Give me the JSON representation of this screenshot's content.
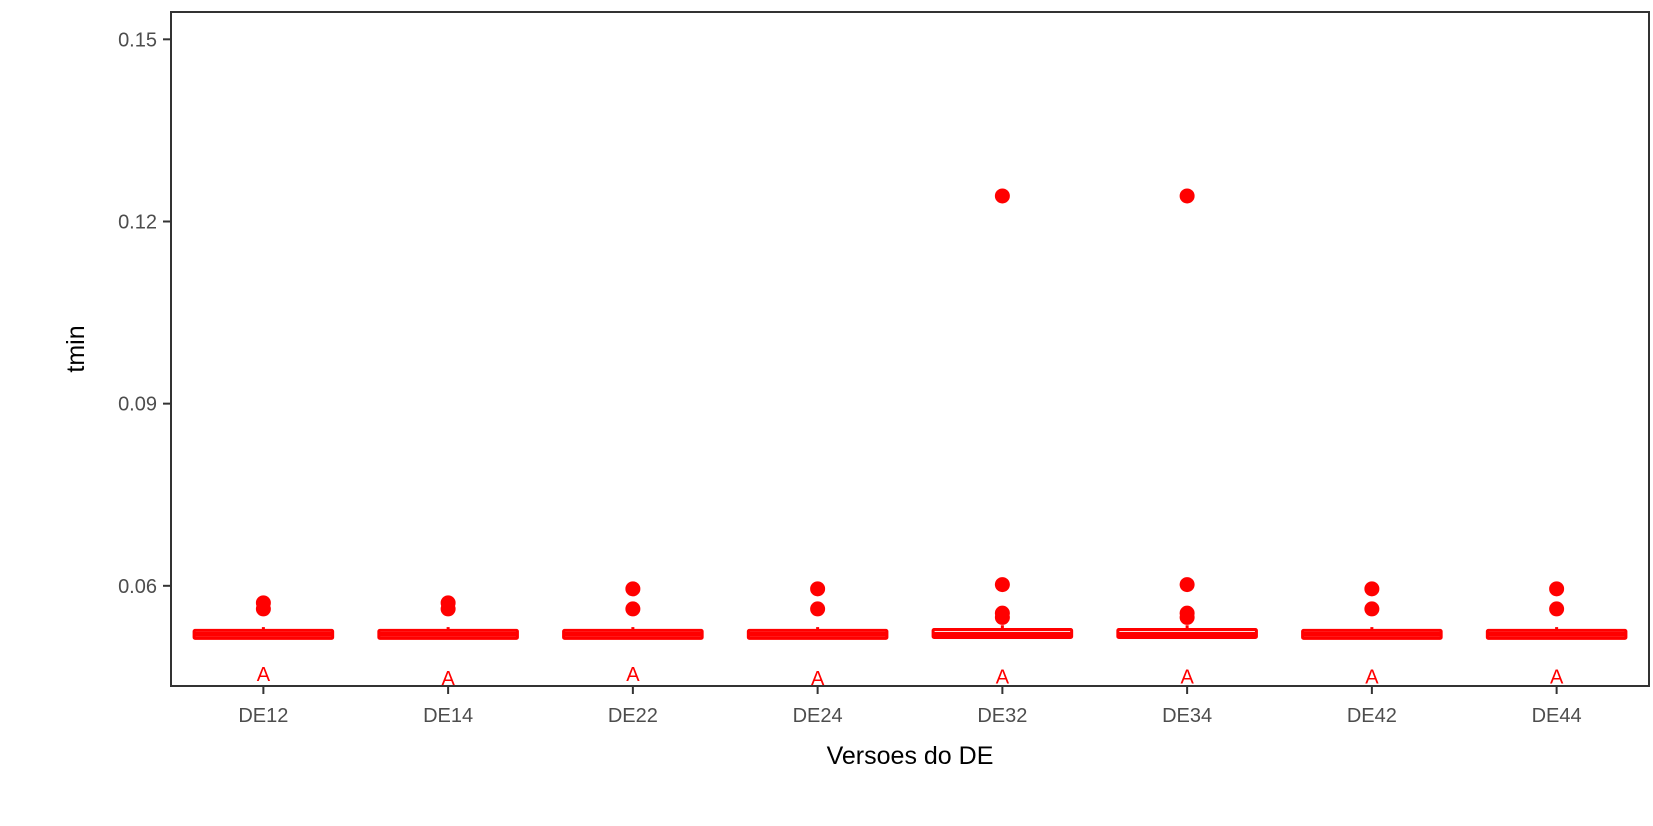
{
  "chart_data": {
    "type": "boxplot",
    "xlabel": "Versoes do DE",
    "ylabel": "tmin",
    "ylim": [
      0.0435,
      0.1545
    ],
    "y_ticks": [
      0.06,
      0.09,
      0.12,
      0.15
    ],
    "y_tick_labels": [
      "0.06",
      "0.09",
      "0.12",
      "0.15"
    ],
    "categories": [
      "DE12",
      "DE14",
      "DE22",
      "DE24",
      "DE32",
      "DE34",
      "DE42",
      "DE44"
    ],
    "color": "#ff0000",
    "grid": false,
    "legend": "none",
    "boxes": [
      {
        "category": "DE12",
        "q1": 0.0518,
        "median": 0.052,
        "q3": 0.0522,
        "whisker_low": 0.0518,
        "whisker_high": 0.0532,
        "outliers": [
          0.0562,
          0.0572
        ],
        "letter": "A",
        "letter_y": 0.0443
      },
      {
        "category": "DE14",
        "q1": 0.0518,
        "median": 0.052,
        "q3": 0.0522,
        "whisker_low": 0.0518,
        "whisker_high": 0.0532,
        "outliers": [
          0.0562,
          0.0572
        ],
        "letter": "A",
        "letter_y": 0.0437
      },
      {
        "category": "DE22",
        "q1": 0.0518,
        "median": 0.052,
        "q3": 0.0522,
        "whisker_low": 0.0518,
        "whisker_high": 0.0532,
        "outliers": [
          0.0562,
          0.0595
        ],
        "letter": "A",
        "letter_y": 0.0443
      },
      {
        "category": "DE24",
        "q1": 0.0518,
        "median": 0.052,
        "q3": 0.0522,
        "whisker_low": 0.0518,
        "whisker_high": 0.0532,
        "outliers": [
          0.0562,
          0.0595
        ],
        "letter": "A",
        "letter_y": 0.0437
      },
      {
        "category": "DE32",
        "q1": 0.0515,
        "median": 0.052,
        "q3": 0.0528,
        "whisker_low": 0.0515,
        "whisker_high": 0.0535,
        "outliers": [
          0.0548,
          0.0555,
          0.0602,
          0.1242
        ],
        "letter": "A",
        "letter_y": 0.0439
      },
      {
        "category": "DE34",
        "q1": 0.0515,
        "median": 0.052,
        "q3": 0.0528,
        "whisker_low": 0.0515,
        "whisker_high": 0.0535,
        "outliers": [
          0.0548,
          0.0555,
          0.0602,
          0.1242
        ],
        "letter": "A",
        "letter_y": 0.0439
      },
      {
        "category": "DE42",
        "q1": 0.0518,
        "median": 0.052,
        "q3": 0.0522,
        "whisker_low": 0.0518,
        "whisker_high": 0.0532,
        "outliers": [
          0.0562,
          0.0595
        ],
        "letter": "A",
        "letter_y": 0.0439
      },
      {
        "category": "DE44",
        "q1": 0.0518,
        "median": 0.052,
        "q3": 0.0522,
        "whisker_low": 0.0518,
        "whisker_high": 0.0532,
        "outliers": [
          0.0562,
          0.0595
        ],
        "letter": "A",
        "letter_y": 0.0439
      }
    ]
  }
}
